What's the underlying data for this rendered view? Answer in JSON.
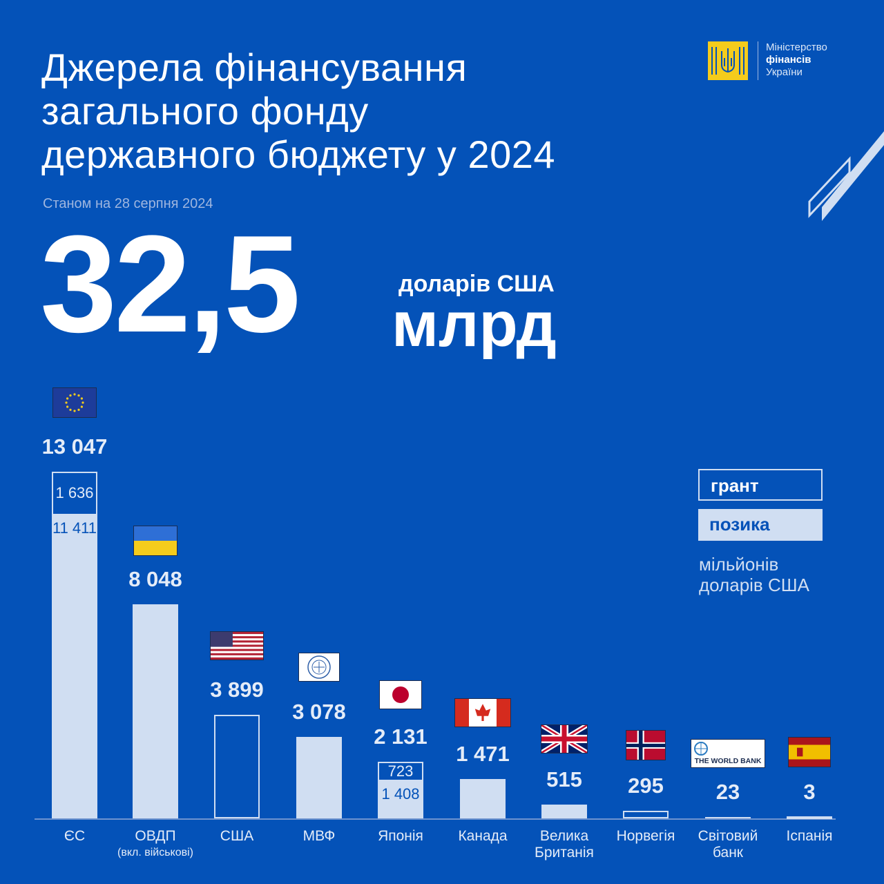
{
  "header": {
    "title_lines": [
      "Джерела фінансування",
      "загального фонду",
      "державного бюджету у 2024"
    ],
    "subtitle": "Станом на 28 серпня 2024"
  },
  "total": {
    "value": "32,5",
    "unit_top": "доларів США",
    "unit_main": "млрд"
  },
  "logo": {
    "line1": "Міністерство",
    "line2": "фінансів",
    "line3": "України"
  },
  "legend": {
    "grant": "грант",
    "loan": "позика",
    "unit_line1": "мільйонів",
    "unit_line2": "доларів США"
  },
  "colors": {
    "background": "#0452B8",
    "loan_fill": "#D0DEF2",
    "grant_outline": "#D0DEF2",
    "logo_yellow": "#F5CC1C"
  },
  "chart_data": {
    "type": "bar",
    "stacked": true,
    "ylabel": "мільйонів доларів США",
    "categories": [
      "ЄС",
      "ОВДП",
      "США",
      "МВФ",
      "Японія",
      "Канада",
      "Велика Британія",
      "Норвегія",
      "Світовий банк",
      "Іспанія"
    ],
    "category_notes": [
      "",
      "(вкл. військові)",
      "",
      "",
      "",
      "",
      "",
      "",
      "",
      ""
    ],
    "totals_labels": [
      "13 047",
      "8 048",
      "3 899",
      "3 078",
      "2 131",
      "1 471",
      "515",
      "295",
      "23",
      "3"
    ],
    "totals": [
      13047,
      8048,
      3899,
      3078,
      2131,
      1471,
      515,
      295,
      23,
      3
    ],
    "series": [
      {
        "name": "позика",
        "values": [
          11411,
          8048,
          0,
          3078,
          1408,
          1471,
          515,
          0,
          23,
          0
        ],
        "labels": [
          "11 411",
          "",
          "",
          "",
          "1 408",
          "",
          "",
          "",
          "",
          ""
        ]
      },
      {
        "name": "грант",
        "values": [
          1636,
          0,
          3899,
          0,
          723,
          0,
          0,
          295,
          0,
          3
        ],
        "labels": [
          "1 636",
          "",
          "",
          "",
          "723",
          "",
          "",
          "",
          "",
          ""
        ]
      }
    ],
    "flags": [
      "eu-flag-icon",
      "ukraine-flag-icon",
      "usa-flag-icon",
      "imf-logo-icon",
      "japan-flag-icon",
      "canada-flag-icon",
      "uk-flag-icon",
      "norway-flag-icon",
      "world-bank-logo-icon",
      "spain-flag-icon"
    ],
    "world_bank_text": "THE WORLD BANK",
    "imf_text": "INTERNATIONAL MONETARY FUND"
  }
}
